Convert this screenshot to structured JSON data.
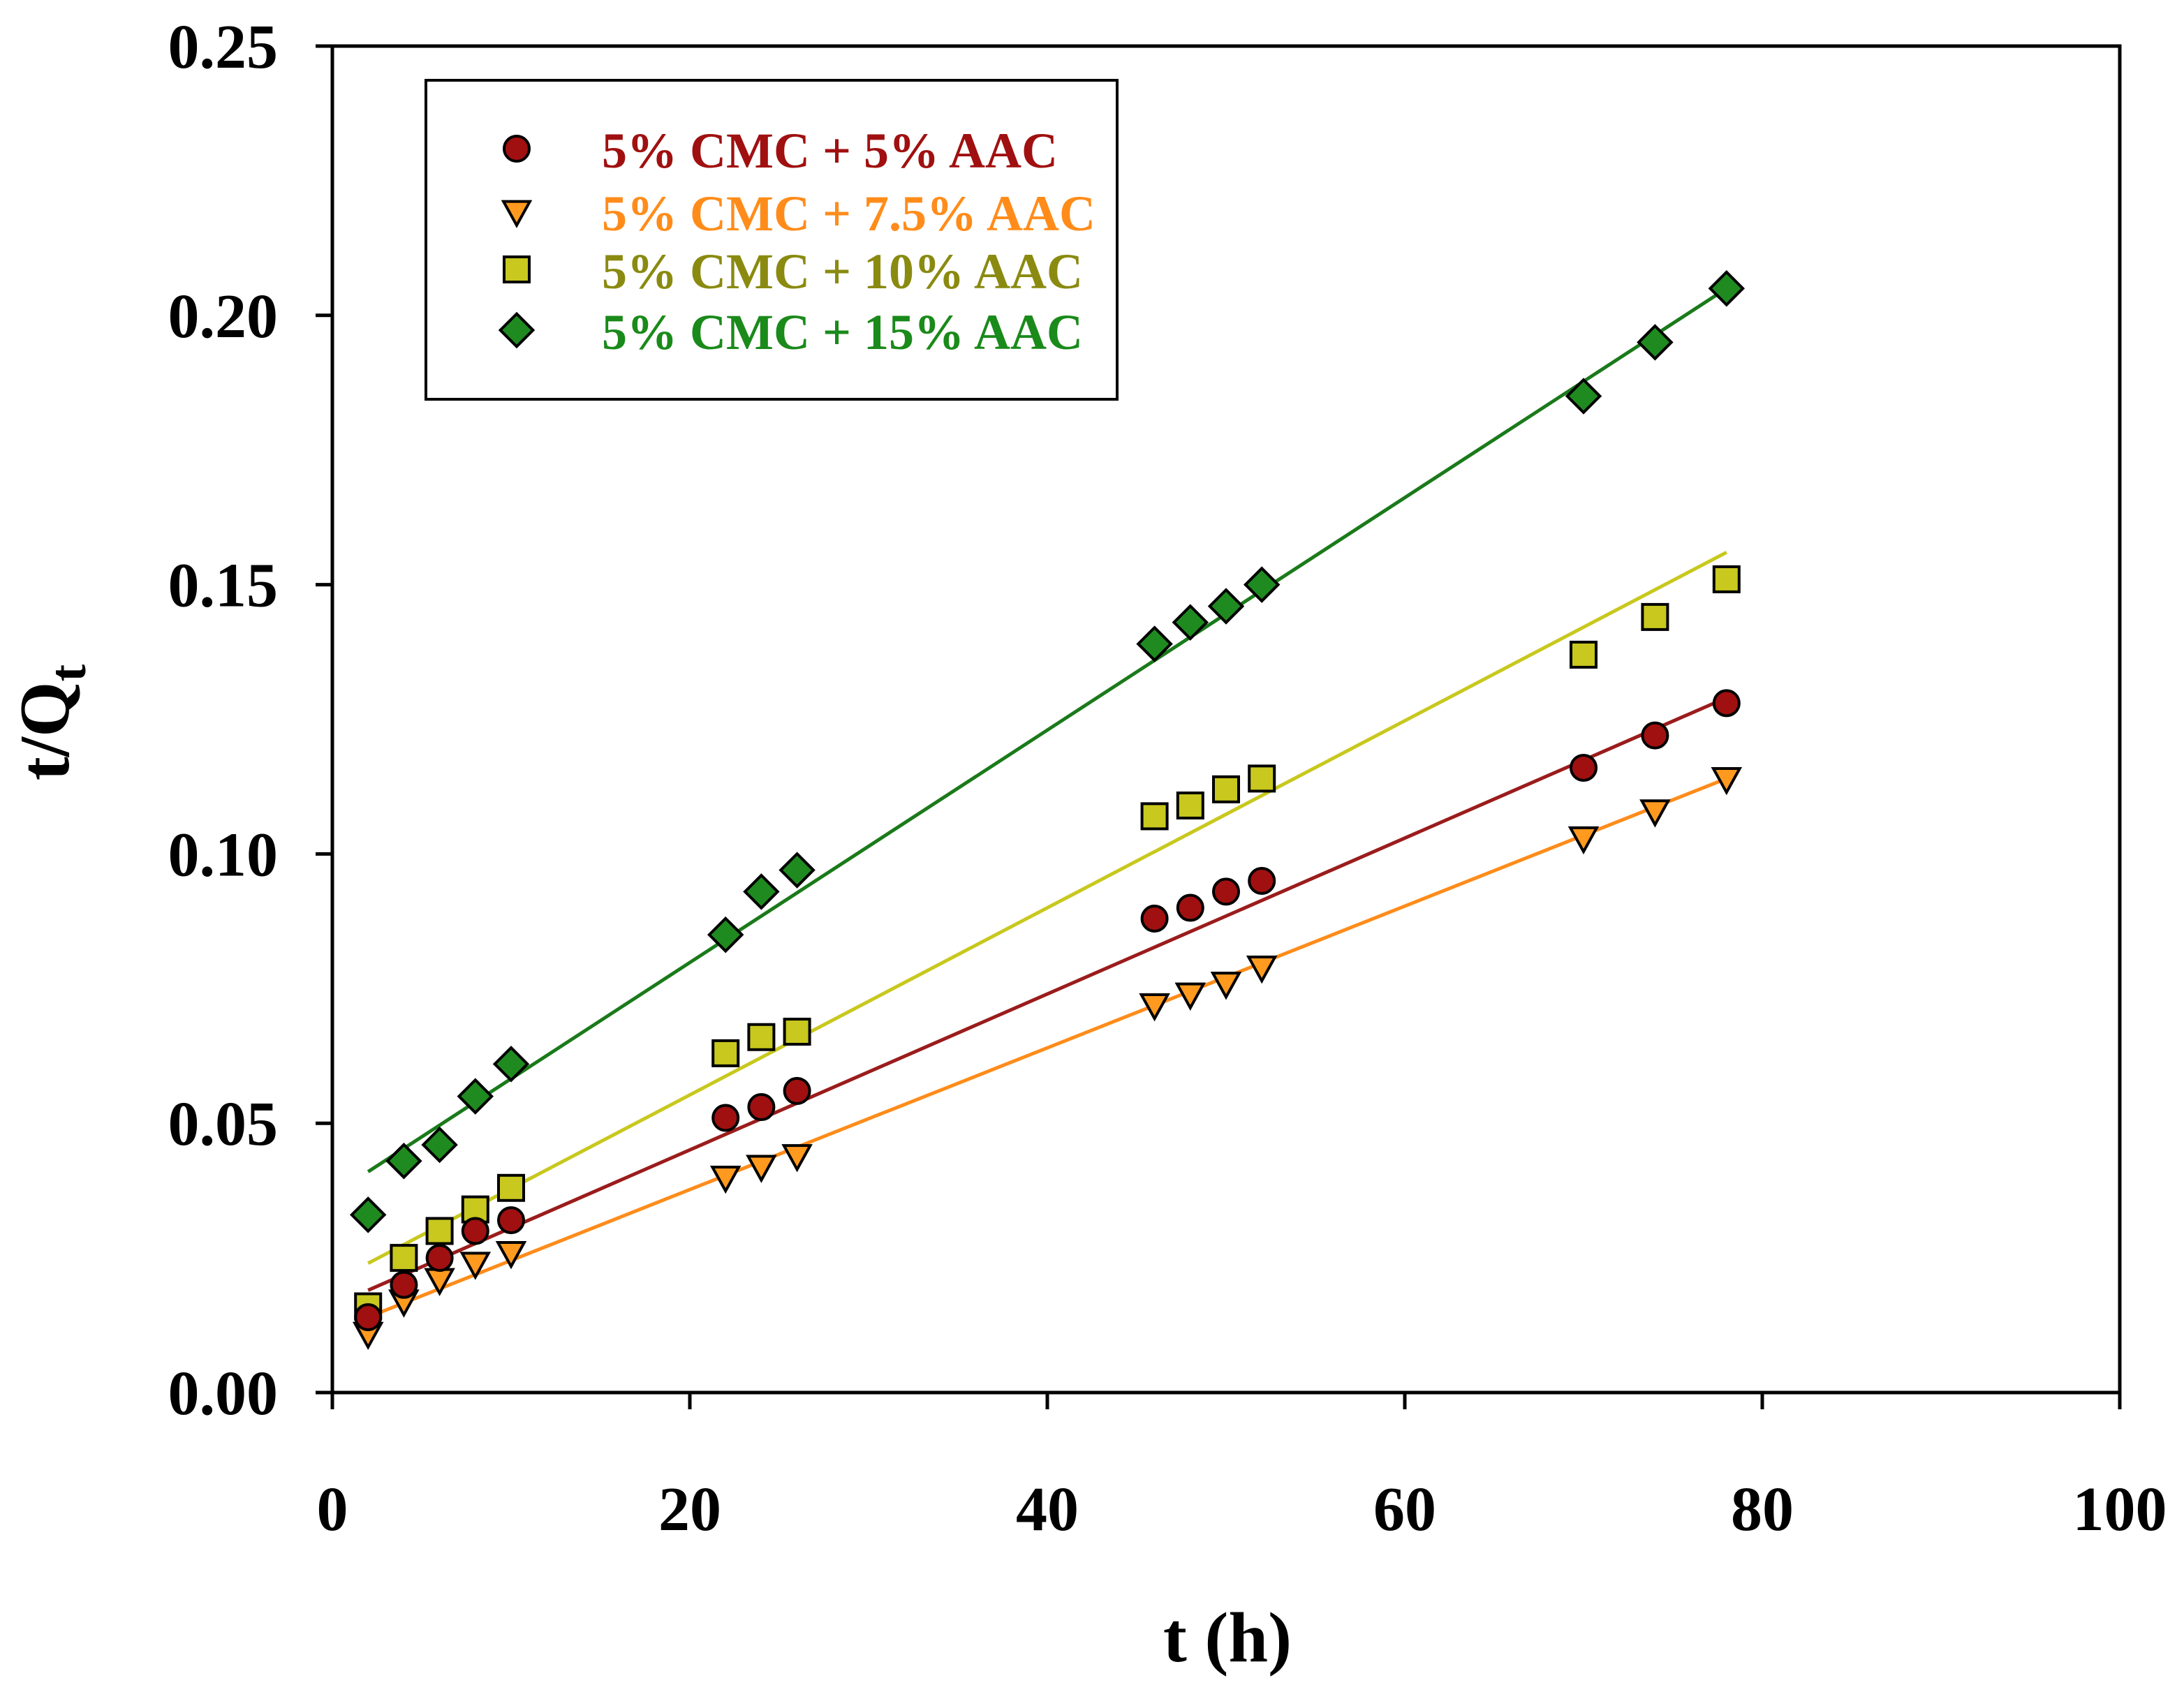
{
  "chart_data": {
    "type": "scatter",
    "xlabel": "t (h)",
    "ylabel": "t/Q",
    "ylabel_subscript": "t",
    "xlim": [
      0,
      100
    ],
    "ylim": [
      0,
      0.25
    ],
    "x_ticks": [
      0,
      20,
      40,
      60,
      80,
      100
    ],
    "x_tick_labels": [
      "0",
      "20",
      "40",
      "60",
      "80",
      "100"
    ],
    "y_ticks": [
      0,
      0.05,
      0.1,
      0.15,
      0.2,
      0.25
    ],
    "y_tick_labels": [
      "0.00",
      "0.05",
      "0.10",
      "0.15",
      "0.20",
      "0.25"
    ],
    "grid": false,
    "legend_position": "top-left",
    "series": [
      {
        "name": "5% CMC + 5% AAC",
        "marker": "circle",
        "color": "#a01010",
        "line_color": "#9b1c1c",
        "x": [
          2,
          4,
          6,
          8,
          10,
          22,
          24,
          26,
          46,
          48,
          50,
          52,
          70,
          74,
          78
        ],
        "y": [
          0.014,
          0.02,
          0.025,
          0.03,
          0.032,
          0.051,
          0.053,
          0.056,
          0.088,
          0.09,
          0.093,
          0.095,
          0.116,
          0.122,
          0.128
        ],
        "fit": [
          [
            2,
            0.019
          ],
          [
            78,
            0.129
          ]
        ]
      },
      {
        "name": "5% CMC + 7.5% AAC",
        "marker": "triangle-down",
        "color": "#ff9a1f",
        "line_color": "#ff8c1a",
        "x": [
          2,
          4,
          6,
          8,
          10,
          22,
          24,
          26,
          46,
          48,
          50,
          52,
          70,
          74,
          78
        ],
        "y": [
          0.011,
          0.017,
          0.021,
          0.024,
          0.026,
          0.04,
          0.042,
          0.044,
          0.072,
          0.074,
          0.076,
          0.079,
          0.103,
          0.108,
          0.114
        ],
        "fit": [
          [
            2,
            0.014
          ],
          [
            78,
            0.114
          ]
        ]
      },
      {
        "name": "5% CMC + 10% AAC",
        "marker": "square",
        "color": "#c8c81e",
        "line_color": "#c8c81e",
        "x": [
          2,
          4,
          6,
          8,
          10,
          22,
          24,
          26,
          46,
          48,
          50,
          52,
          70,
          74,
          78
        ],
        "y": [
          0.016,
          0.025,
          0.03,
          0.034,
          0.038,
          0.063,
          0.066,
          0.067,
          0.107,
          0.109,
          0.112,
          0.114,
          0.137,
          0.144,
          0.151
        ],
        "fit": [
          [
            2,
            0.024
          ],
          [
            78,
            0.156
          ]
        ]
      },
      {
        "name": "5% CMC + 15% AAC",
        "marker": "diamond",
        "color": "#1f8a1f",
        "line_color": "#1a7a1a",
        "x": [
          2,
          4,
          6,
          8,
          10,
          22,
          24,
          26,
          46,
          48,
          50,
          52,
          70,
          74,
          78
        ],
        "y": [
          0.033,
          0.043,
          0.046,
          0.055,
          0.061,
          0.085,
          0.093,
          0.097,
          0.139,
          0.143,
          0.146,
          0.15,
          0.185,
          0.195,
          0.205
        ],
        "fit": [
          [
            2,
            0.041
          ],
          [
            78,
            0.205
          ]
        ]
      }
    ]
  },
  "legend_text_colors": [
    "#a01010",
    "#ff8c1a",
    "#8a8a10",
    "#1a8a1a"
  ]
}
